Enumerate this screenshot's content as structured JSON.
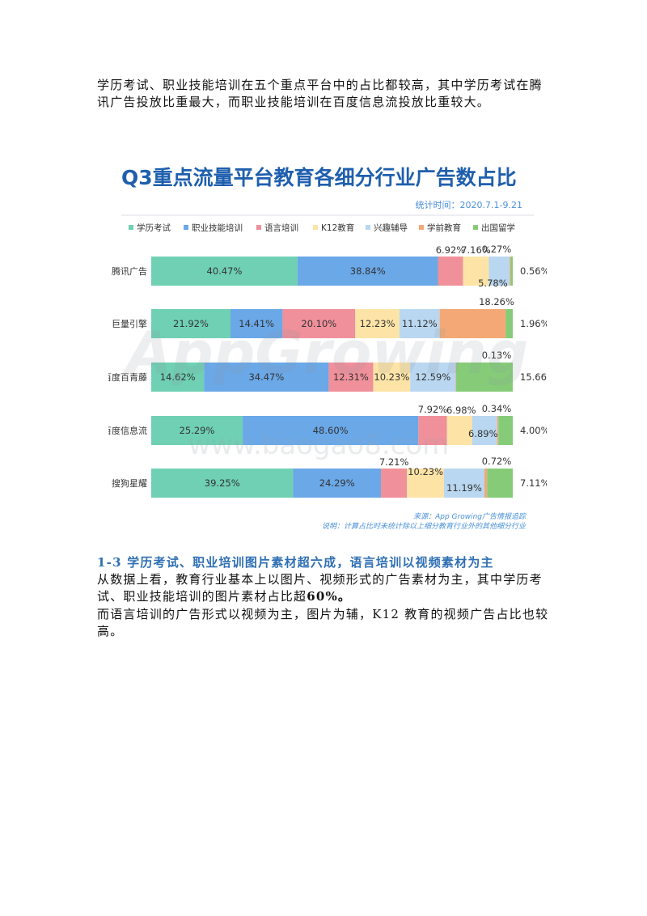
{
  "intro": "学历考试、职业技能培训在五个重点平台中的占比都较高，其中学历考试在腾讯广告投放比重最大，而职业技能培训在百度信息流投放比重较大。",
  "section_heading": "1-3 学历考试、职业培训图片素材超六成，语言培训以视频素材为主",
  "para1_text": "从数据上看，教育行业基本上以图片、视频形式的广告素材为主，其中学历考试、职业技能培训的图片素材占比超",
  "para1_bold": "60%。",
  "para2": "而语言培训的广告形式以视频为主，图片为辅，K12 教育的视频广告占比也较高。",
  "colors": {
    "title": "#1f5fae",
    "accent": "#4a90d9",
    "series": [
      "#6fd0b3",
      "#6aa8e8",
      "#f0909a",
      "#fde4a6",
      "#b9d7f0",
      "#f3a875",
      "#86cc78"
    ]
  },
  "chart_data": {
    "type": "bar",
    "orientation": "horizontal",
    "stacked": true,
    "title": "Q3重点流量平台教育各细分行业广告数占比",
    "subtitle": "统计时间：2020.7.1-9.21",
    "watermark": "AppGrowing",
    "watermark2": "www.baogao8.com",
    "source": "来源：App Growing广告情报追踪",
    "note": "说明：计算占比时未统计除以上细分教育行业外的其他细分行业",
    "legend_position": "top-left",
    "categories": [
      "腾讯广告",
      "巨量引擎",
      "百度百青藤",
      "百度信息流",
      "搜狗星耀"
    ],
    "series": [
      {
        "name": "学历考试",
        "values": [
          40.47,
          21.92,
          14.62,
          25.29,
          39.25
        ]
      },
      {
        "name": "职业技能培训",
        "values": [
          38.84,
          14.41,
          34.47,
          48.6,
          24.29
        ]
      },
      {
        "name": "语言培训",
        "values": [
          6.92,
          20.1,
          12.31,
          7.92,
          7.21
        ]
      },
      {
        "name": "K12教育",
        "values": [
          7.16,
          12.23,
          10.23,
          6.98,
          10.23
        ]
      },
      {
        "name": "兴趣辅导",
        "values": [
          5.78,
          11.12,
          12.59,
          6.89,
          11.19
        ]
      },
      {
        "name": "学前教育",
        "values": [
          0.27,
          18.26,
          0.13,
          0.34,
          0.72
        ]
      },
      {
        "name": "出国留学",
        "values": [
          0.56,
          1.96,
          15.66,
          4.0,
          7.11
        ]
      }
    ],
    "labels": [
      [
        "40.47%",
        "38.84%",
        "6.92%",
        "7.16%",
        "5.78%",
        "0.27%",
        "0.56%"
      ],
      [
        "21.92%",
        "14.41%",
        "20.10%",
        "12.23%",
        "11.12%",
        "18.26%",
        "1.96%"
      ],
      [
        "14.62%",
        "34.47%",
        "12.31%",
        "10.23%",
        "12.59%",
        "0.13%",
        "15.66%"
      ],
      [
        "25.29%",
        "48.60%",
        "7.92%",
        "6.98%",
        "6.89%",
        "0.34%",
        "4.00%"
      ],
      [
        "39.25%",
        "24.29%",
        "7.21%",
        "10.23%",
        "11.19%",
        "0.72%",
        "7.11%"
      ]
    ],
    "xlim": [
      0,
      100
    ]
  }
}
